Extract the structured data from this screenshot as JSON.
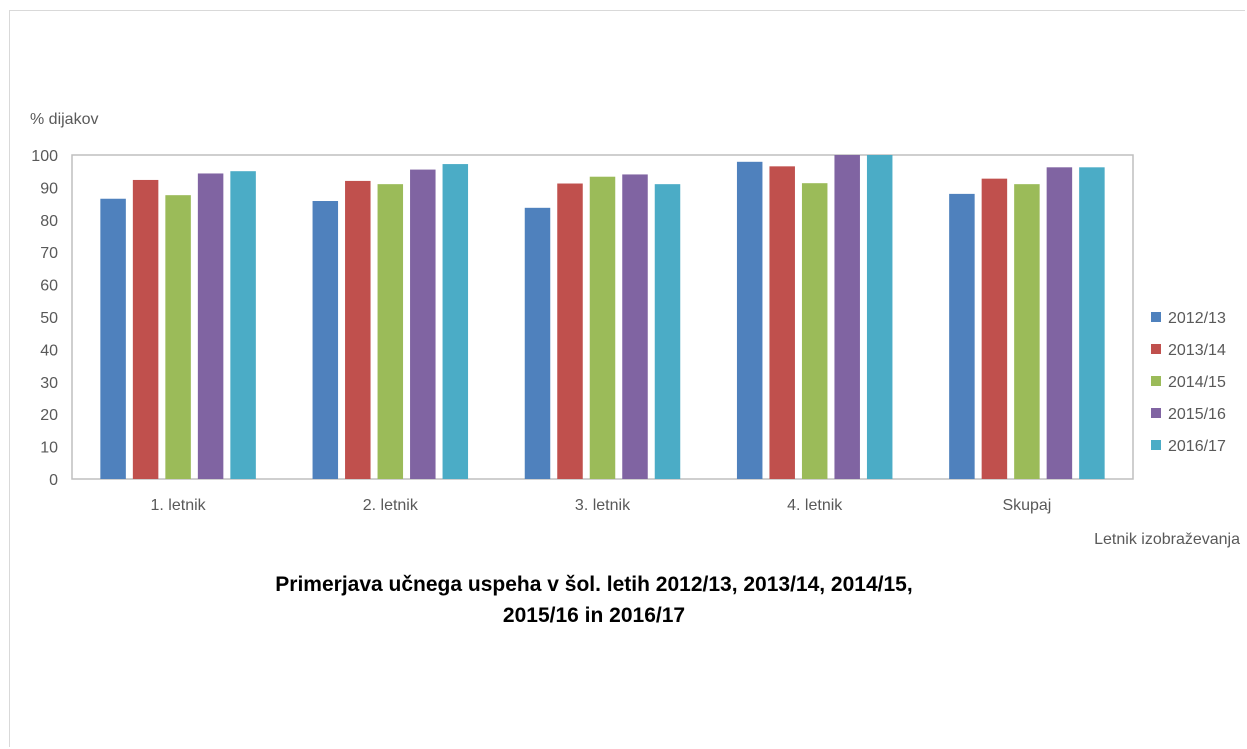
{
  "chart_data": {
    "type": "bar",
    "title_lines": [
      "Primerjava učnega uspeha v šol. letih 2012/13, 2013/14, 2014/15,",
      "2015/16 in 2016/17"
    ],
    "xlabel": "Letnik izobraževanja",
    "ylabel": "% dijakov",
    "ylim": [
      0,
      100
    ],
    "yticks": [
      0,
      10,
      20,
      30,
      40,
      50,
      60,
      70,
      80,
      90,
      100
    ],
    "grid": false,
    "legend_position": "right",
    "categories": [
      "1. letnik",
      "2. letnik",
      "3. letnik",
      "4. letnik",
      "Skupaj"
    ],
    "series": [
      {
        "name": "2012/13",
        "color": "#4f81bd",
        "values": [
          86.5,
          85.8,
          83.7,
          97.9,
          88.0
        ]
      },
      {
        "name": "2013/14",
        "color": "#c0504d",
        "values": [
          92.3,
          92.0,
          91.2,
          96.5,
          92.7
        ]
      },
      {
        "name": "2014/15",
        "color": "#9bbb59",
        "values": [
          87.6,
          91.0,
          93.3,
          91.3,
          91.0
        ]
      },
      {
        "name": "2015/16",
        "color": "#8064a2",
        "values": [
          94.3,
          95.5,
          94.0,
          100,
          96.2
        ]
      },
      {
        "name": "2016/17",
        "color": "#4bacc6",
        "values": [
          95.0,
          97.2,
          91.0,
          100,
          96.2
        ]
      }
    ]
  }
}
